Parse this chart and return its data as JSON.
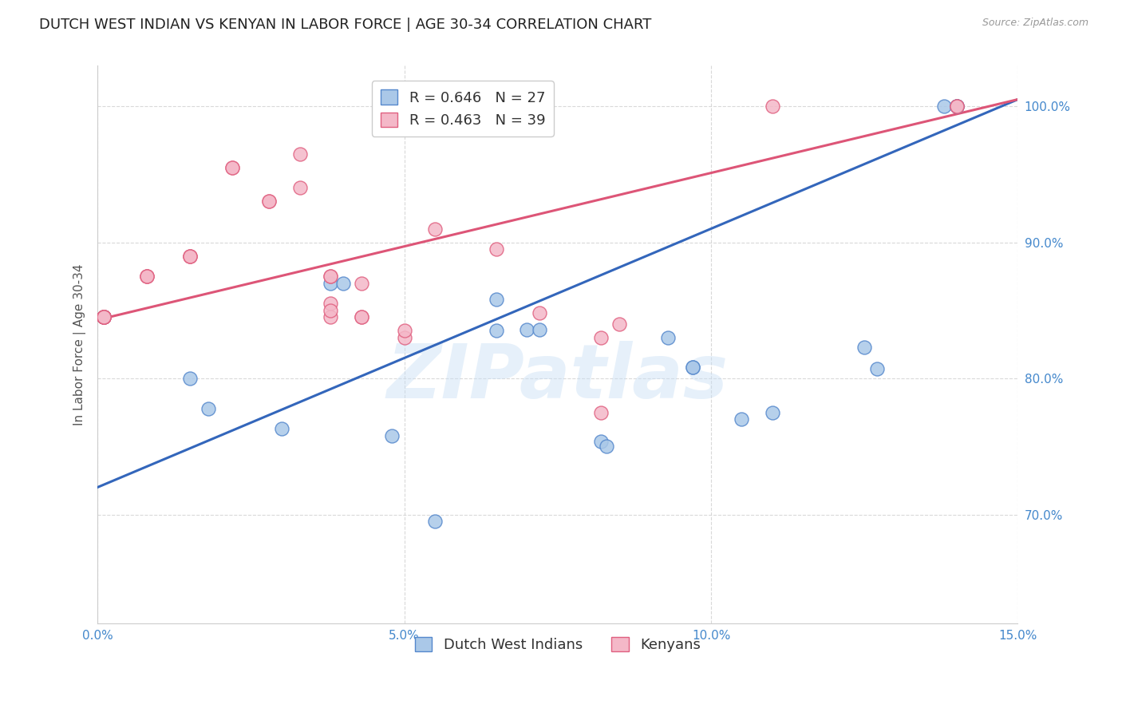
{
  "title": "DUTCH WEST INDIAN VS KENYAN IN LABOR FORCE | AGE 30-34 CORRELATION CHART",
  "source_text": "Source: ZipAtlas.com",
  "ylabel": "In Labor Force | Age 30-34",
  "xlim": [
    0.0,
    0.15
  ],
  "ylim": [
    0.62,
    1.03
  ],
  "ytick_values": [
    0.7,
    0.8,
    0.9,
    1.0
  ],
  "xtick_values": [
    0.0,
    0.05,
    0.1,
    0.15
  ],
  "grid_color": "#d0d0d0",
  "background_color": "#ffffff",
  "blue_color": "#aac8e8",
  "pink_color": "#f4b8c8",
  "blue_edge_color": "#5588cc",
  "pink_edge_color": "#e06080",
  "blue_line_color": "#3366bb",
  "pink_line_color": "#dd5577",
  "legend_blue_R": "R = 0.646",
  "legend_blue_N": "N = 27",
  "legend_pink_R": "R = 0.463",
  "legend_pink_N": "N = 39",
  "watermark": "ZIPatlas",
  "blue_scatter_x": [
    0.001,
    0.001,
    0.001,
    0.015,
    0.018,
    0.03,
    0.038,
    0.04,
    0.048,
    0.055,
    0.065,
    0.065,
    0.07,
    0.072,
    0.082,
    0.083,
    0.093,
    0.097,
    0.097,
    0.105,
    0.11,
    0.125,
    0.127,
    0.138,
    0.14,
    0.14,
    0.14
  ],
  "blue_scatter_y": [
    0.845,
    0.845,
    0.845,
    0.8,
    0.778,
    0.763,
    0.87,
    0.87,
    0.758,
    0.695,
    0.858,
    0.835,
    0.836,
    0.836,
    0.754,
    0.75,
    0.83,
    0.808,
    0.808,
    0.77,
    0.775,
    0.823,
    0.807,
    1.0,
    1.0,
    1.0,
    1.0
  ],
  "pink_scatter_x": [
    0.001,
    0.001,
    0.001,
    0.001,
    0.001,
    0.001,
    0.001,
    0.001,
    0.008,
    0.008,
    0.008,
    0.015,
    0.015,
    0.015,
    0.022,
    0.022,
    0.028,
    0.028,
    0.033,
    0.033,
    0.038,
    0.038,
    0.038,
    0.038,
    0.038,
    0.043,
    0.043,
    0.043,
    0.05,
    0.05,
    0.055,
    0.065,
    0.072,
    0.082,
    0.082,
    0.085,
    0.11,
    0.14,
    0.14
  ],
  "pink_scatter_y": [
    0.845,
    0.845,
    0.845,
    0.845,
    0.845,
    0.845,
    0.845,
    0.845,
    0.875,
    0.875,
    0.875,
    0.89,
    0.89,
    0.89,
    0.955,
    0.955,
    0.93,
    0.93,
    0.965,
    0.94,
    0.875,
    0.875,
    0.855,
    0.845,
    0.85,
    0.87,
    0.845,
    0.845,
    0.83,
    0.835,
    0.91,
    0.895,
    0.848,
    0.83,
    0.775,
    0.84,
    1.0,
    1.0,
    1.0
  ],
  "blue_line_x0": 0.0,
  "blue_line_y0": 0.72,
  "blue_line_x1": 0.15,
  "blue_line_y1": 1.005,
  "pink_line_x0": 0.0,
  "pink_line_y0": 0.843,
  "pink_line_x1": 0.15,
  "pink_line_y1": 1.005,
  "title_fontsize": 13,
  "axis_label_fontsize": 11,
  "tick_fontsize": 11,
  "legend_fontsize": 13
}
